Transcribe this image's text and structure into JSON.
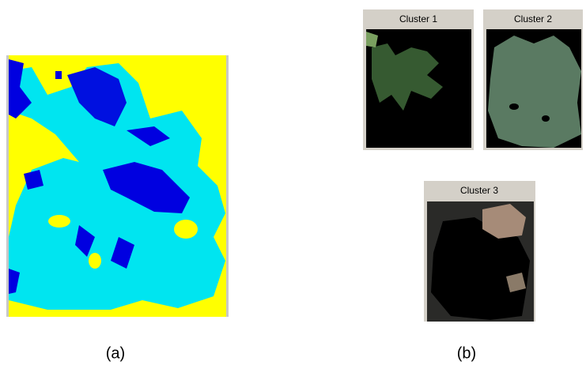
{
  "panels": [
    {
      "label": "(a)"
    },
    {
      "label": "(b)",
      "windows": [
        {
          "title": "Cluster 1"
        },
        {
          "title": "Cluster 2"
        },
        {
          "title": "Cluster 3"
        }
      ]
    }
  ]
}
